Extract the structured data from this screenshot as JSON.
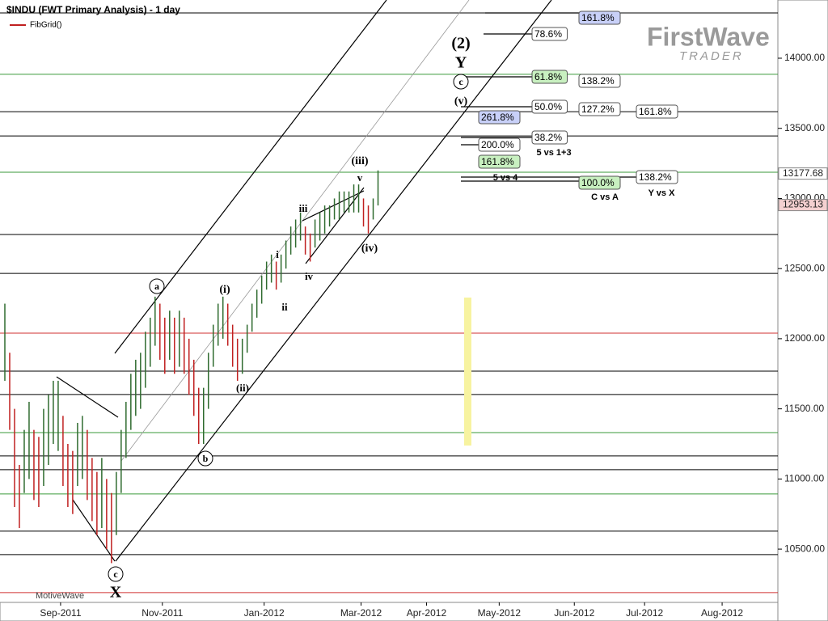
{
  "chart_data": {
    "type": "ohlc",
    "title": "$INDU (FWT Primary Analysis) - 1 day",
    "indicator": "FibGrid()",
    "footer": "MotiveWave",
    "logo": {
      "main": "FirstWave",
      "sub": "TRADER"
    },
    "bar_color": "#2f6b2f",
    "down_color": "#c02020",
    "x": [
      -23,
      -21,
      -19,
      -17,
      -15,
      -13,
      -11,
      -9,
      -7,
      -5,
      -3,
      -1,
      1,
      3,
      5,
      7,
      9,
      11,
      13,
      15,
      17,
      19,
      21,
      23,
      25,
      27,
      29,
      31,
      33,
      35,
      37,
      39,
      41,
      43,
      45,
      47,
      49,
      51,
      53,
      55,
      57,
      59,
      61,
      63,
      65,
      67,
      69,
      71,
      73,
      75,
      77,
      79,
      81,
      83,
      85,
      87,
      89,
      91,
      93,
      95,
      97,
      99,
      101,
      103,
      105,
      107,
      109,
      111,
      113,
      115,
      117,
      119,
      121,
      123,
      125,
      127,
      129,
      131
    ],
    "low": [
      11700,
      11350,
      10800,
      10650,
      10900,
      11000,
      10850,
      10800,
      10950,
      11100,
      11250,
      11200,
      10950,
      10800,
      10750,
      10950,
      11000,
      10850,
      10700,
      10600,
      10650,
      10500,
      10400,
      10600,
      10900,
      11150,
      11350,
      11450,
      11500,
      11650,
      11800,
      11950,
      11850,
      11750,
      11850,
      11750,
      11800,
      11750,
      11600,
      11450,
      11250,
      11250,
      11500,
      11800,
      11950,
      12000,
      11950,
      11800,
      11700,
      11750,
      11900,
      12050,
      12150,
      12250,
      12350,
      12400,
      12350,
      12400,
      12500,
      12600,
      12650,
      12700,
      12600,
      12550,
      12650,
      12700,
      12750,
      12800,
      12850,
      12850,
      12900,
      12900,
      12900,
      12900,
      12800,
      12750,
      12850,
      12950
    ],
    "high": [
      12250,
      11900,
      11500,
      11100,
      11350,
      11550,
      11350,
      11300,
      11500,
      11600,
      11700,
      11700,
      11450,
      11250,
      11200,
      11400,
      11450,
      11350,
      11150,
      11050,
      11150,
      11000,
      10900,
      11050,
      11350,
      11550,
      11750,
      11850,
      11900,
      12050,
      12150,
      12300,
      12250,
      12150,
      12200,
      12150,
      12200,
      12150,
      12000,
      11850,
      11650,
      11650,
      11900,
      12100,
      12250,
      12300,
      12250,
      12100,
      12000,
      12000,
      12100,
      12250,
      12350,
      12450,
      12550,
      12600,
      12550,
      12600,
      12700,
      12800,
      12850,
      12900,
      12800,
      12750,
      12850,
      12900,
      12950,
      12950,
      13000,
      13050,
      13050,
      13050,
      13100,
      13100,
      13000,
      12950,
      13000,
      13200
    ],
    "xlim": [
      -25,
      296
    ],
    "ylim": [
      10120,
      14415
    ],
    "xticks": [
      {
        "value": 0,
        "label": "Sep-2011"
      },
      {
        "value": 42,
        "label": "Nov-2011"
      },
      {
        "value": 84,
        "label": "Jan-2012"
      },
      {
        "value": 124,
        "label": "Mar-2012"
      },
      {
        "value": 151,
        "label": "Apr-2012"
      },
      {
        "value": 181,
        "label": "May-2012"
      },
      {
        "value": 212,
        "label": "Jun-2012"
      },
      {
        "value": 241,
        "label": "Jul-2012"
      },
      {
        "value": 273,
        "label": "Aug-2012"
      }
    ],
    "yticks": [
      {
        "value": 14000,
        "label": "14000.00"
      },
      {
        "value": 13500,
        "label": "13500.00"
      },
      {
        "value": 13000,
        "label": "13000.00"
      },
      {
        "value": 12500,
        "label": "12500.00"
      },
      {
        "value": 12000,
        "label": "12000.00"
      },
      {
        "value": 11500,
        "label": "11500.00"
      },
      {
        "value": 11000,
        "label": "11000.00"
      },
      {
        "value": 10500,
        "label": "10500.00"
      }
    ],
    "levels": [
      {
        "value": 14323,
        "color": "#000000"
      },
      {
        "value": 13885,
        "color": "#3a9a3a"
      },
      {
        "value": 13619,
        "color": "#000000"
      },
      {
        "value": 13446,
        "color": "#000000"
      },
      {
        "value": 13187,
        "color": "#3a9a3a"
      },
      {
        "value": 12743,
        "color": "#000000"
      },
      {
        "value": 12466,
        "color": "#000000"
      },
      {
        "value": 12040,
        "color": "#d03030"
      },
      {
        "value": 11769,
        "color": "#000000"
      },
      {
        "value": 11602,
        "color": "#000000"
      },
      {
        "value": 11331,
        "color": "#3a9a3a"
      },
      {
        "value": 11164,
        "color": "#000000"
      },
      {
        "value": 11066,
        "color": "#000000"
      },
      {
        "value": 10893,
        "color": "#3a9a3a"
      },
      {
        "value": 10628,
        "color": "#000000"
      },
      {
        "value": 10461,
        "color": "#000000"
      },
      {
        "value": 10190,
        "color": "#d03030"
      }
    ],
    "price_labels": [
      {
        "value": 13177.68,
        "label": "13177.68",
        "color": "#ffffff"
      },
      {
        "value": 12953.13,
        "label": "12953.13",
        "color": "#f4d0d0"
      }
    ],
    "fib_labels": [
      {
        "text": "161.8%",
        "color": "#c8d0f8"
      },
      {
        "text": "78.6%",
        "color": "#ffffff"
      },
      {
        "text": "61.8%",
        "color": "#c8f0c0"
      },
      {
        "text": "138.2%",
        "color": "#ffffff"
      },
      {
        "text": "50.0%",
        "color": "#ffffff"
      },
      {
        "text": "127.2%",
        "color": "#ffffff"
      },
      {
        "text": "161.8%",
        "color": "#ffffff"
      },
      {
        "text": "261.8%",
        "color": "#c8d0f8"
      },
      {
        "text": "38.2%",
        "color": "#ffffff"
      },
      {
        "text": "200.0%",
        "color": "#ffffff"
      },
      {
        "text": "161.8%",
        "color": "#c8f0c0"
      },
      {
        "text": "100.0%",
        "color": "#c8f0c0"
      },
      {
        "text": "138.2%",
        "color": "#ffffff"
      }
    ],
    "notes": [
      "5 vs 1+3",
      "5 vs 4",
      "C vs A",
      "Y vs X"
    ],
    "waves": [
      "(2)",
      "Y",
      "c",
      "(v)",
      "(iii)",
      "v",
      "iii",
      "i",
      "ii",
      "iv",
      "(iv)",
      "(i)",
      "(ii)",
      "a",
      "b",
      "c",
      "X"
    ]
  }
}
